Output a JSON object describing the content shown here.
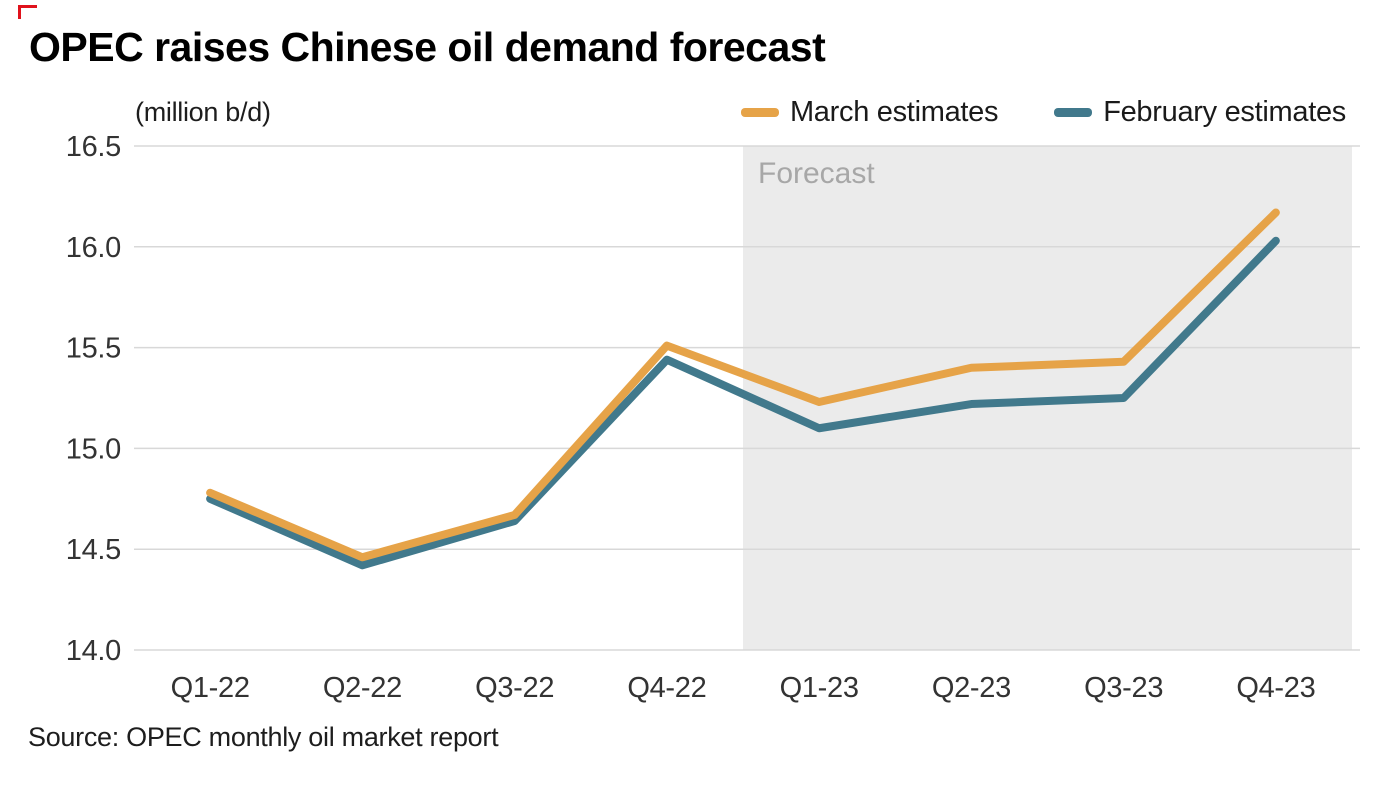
{
  "brand": {
    "corner_mark_color": "#e0121c"
  },
  "title": "OPEC raises Chinese oil demand forecast",
  "unit_label": "(million b/d)",
  "legend": [
    {
      "label": "March estimates",
      "color": "#e6a348"
    },
    {
      "label": "February estimates",
      "color": "#41798c"
    }
  ],
  "forecast_label": "Forecast",
  "source": "Source: OPEC monthly oil market report",
  "colors": {
    "march_line": "#e6a348",
    "february_line": "#41798c",
    "gridline": "#d8d8d8",
    "forecast_band": "#ebebeb",
    "forecast_text": "#a7a7a7",
    "axis_text": "#333333"
  },
  "chart_data": {
    "type": "line",
    "title": "OPEC raises Chinese oil demand forecast",
    "ylabel": "(million b/d)",
    "xlabel": "",
    "categories": [
      "Q1-22",
      "Q2-22",
      "Q3-22",
      "Q4-22",
      "Q1-23",
      "Q2-23",
      "Q3-23",
      "Q4-23"
    ],
    "series": [
      {
        "name": "March estimates",
        "color": "#e6a348",
        "values": [
          14.78,
          14.46,
          14.67,
          15.51,
          15.23,
          15.4,
          15.43,
          16.17
        ]
      },
      {
        "name": "February estimates",
        "color": "#41798c",
        "values": [
          14.75,
          14.42,
          14.64,
          15.44,
          15.1,
          15.22,
          15.25,
          16.03
        ]
      }
    ],
    "ylim": [
      14.0,
      16.5
    ],
    "ytick_step": 0.5,
    "yticks": [
      "14.0",
      "14.5",
      "15.0",
      "15.5",
      "16.0",
      "16.5"
    ],
    "grid": true,
    "legend_position": "top-right",
    "forecast_region": {
      "label": "Forecast",
      "start_category": "Q1-23",
      "color": "#ebebeb"
    }
  }
}
